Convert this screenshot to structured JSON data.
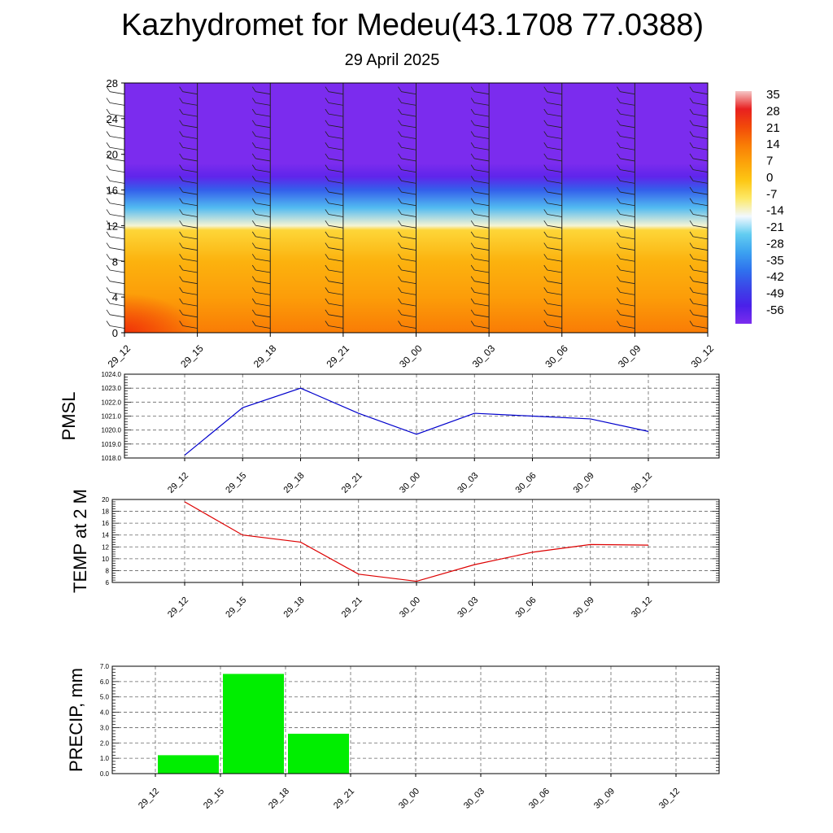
{
  "header": {
    "title": "Kazhydromet for Medeu(43.1708 77.0388)",
    "subtitle": "29 April 2025"
  },
  "chart_data": [
    {
      "type": "heatmap",
      "title": "",
      "xlabel": "",
      "ylabel": "",
      "x_ticks": [
        "29_12",
        "29_15",
        "29_18",
        "29_21",
        "30_00",
        "30_03",
        "30_06",
        "30_09",
        "30_12"
      ],
      "y_ticks": [
        0,
        4,
        8,
        12,
        16,
        20,
        24,
        28
      ],
      "ylim": [
        0,
        28
      ],
      "colorbar": {
        "labels": [
          "35",
          "28",
          "21",
          "14",
          "7",
          "0",
          "-7",
          "-14",
          "-21",
          "-28",
          "-35",
          "-42",
          "-49",
          "-56"
        ],
        "colors": [
          "#f5c6c6",
          "#e82020",
          "#f24a0a",
          "#f97c05",
          "#fca30a",
          "#fdc714",
          "#fde968",
          "#f2f8ff",
          "#62cdf1",
          "#3ca2f0",
          "#2f72ee",
          "#3b45e8",
          "#4a20e9",
          "#7b2cee"
        ]
      },
      "temperature_profile": [
        {
          "level": 0,
          "value": 14
        },
        {
          "level": 4,
          "value": 8
        },
        {
          "level": 8,
          "value": 4
        },
        {
          "level": 11.5,
          "value": -3
        },
        {
          "level": 12,
          "value": -12
        },
        {
          "level": 14,
          "value": -24
        },
        {
          "level": 16,
          "value": -38
        },
        {
          "level": 17.5,
          "value": -52
        },
        {
          "level": 19,
          "value": -58
        },
        {
          "level": 28,
          "value": -60
        }
      ]
    },
    {
      "type": "line",
      "ylabel": "PMSL",
      "x": [
        "29_12",
        "29_15",
        "29_18",
        "29_21",
        "30_00",
        "30_03",
        "30_06",
        "30_09",
        "30_12"
      ],
      "series": [
        {
          "values": [
            1018.2,
            1021.6,
            1023.0,
            1021.2,
            1019.7,
            1021.2,
            1021.0,
            1020.8,
            1019.9
          ],
          "color": "#0000cc"
        }
      ],
      "ylim": [
        1018.0,
        1024.0
      ],
      "y_ticks": [
        "1018.0",
        "1019.0",
        "1020.0",
        "1021.0",
        "1022.0",
        "1023.0",
        "1024.0"
      ],
      "grid": true
    },
    {
      "type": "line",
      "ylabel": "TEMP at 2 M",
      "x": [
        "29_12",
        "29_15",
        "29_18",
        "29_21",
        "30_00",
        "30_03",
        "30_06",
        "30_09",
        "30_12"
      ],
      "series": [
        {
          "values": [
            19.6,
            14.0,
            12.8,
            7.4,
            6.2,
            9.0,
            11.1,
            12.4,
            12.3
          ],
          "color": "#dd0000"
        }
      ],
      "ylim": [
        6,
        20
      ],
      "y_ticks": [
        "6",
        "8",
        "10",
        "12",
        "14",
        "16",
        "18",
        "20"
      ],
      "grid": true
    },
    {
      "type": "bar",
      "ylabel": "PRECIP, mm",
      "categories": [
        "29_12",
        "29_15",
        "29_18",
        "29_21",
        "30_00",
        "30_03",
        "30_06",
        "30_09",
        "30_12"
      ],
      "values": [
        0,
        1.2,
        6.5,
        2.6,
        0,
        0,
        0,
        0,
        0
      ],
      "bar_color": "#00ee00",
      "ylim": [
        0,
        7
      ],
      "y_ticks": [
        "0.0",
        "1.0",
        "2.0",
        "3.0",
        "4.0",
        "5.0",
        "6.0",
        "7.0"
      ],
      "grid": true
    }
  ]
}
